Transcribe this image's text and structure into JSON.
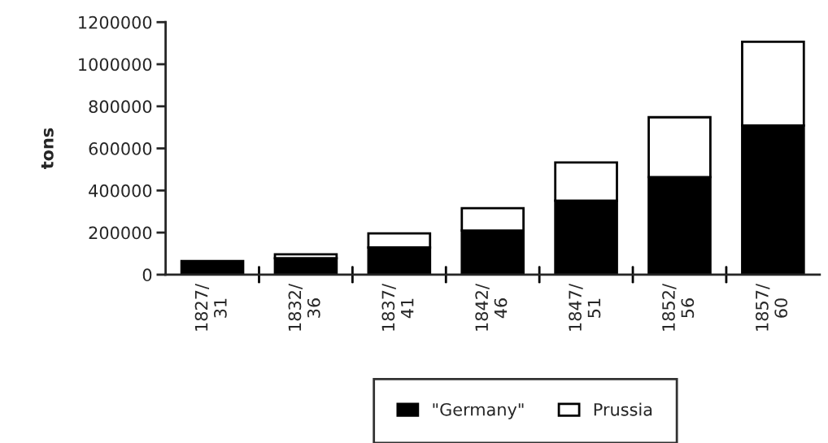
{
  "chart_data": {
    "type": "bar",
    "ylabel": "tons",
    "stacked": true,
    "categories": [
      "1827/\n31",
      "1832/\n36",
      "1837/\n41",
      "1842/\n46",
      "1847/\n51",
      "1852/\n56",
      "1857/\n60"
    ],
    "series": [
      {
        "name": "\"Germany\"",
        "color": "#000000",
        "values": [
          65000,
          78000,
          129000,
          210000,
          352000,
          464000,
          709000
        ]
      },
      {
        "name": "Prussia",
        "color": "#ffffff",
        "values": [
          null,
          19000,
          67000,
          106000,
          181000,
          284000,
          398000
        ]
      }
    ],
    "ylim": [
      0,
      1200000
    ],
    "yticks": [
      0,
      200000,
      400000,
      600000,
      800000,
      1000000,
      1200000
    ],
    "grid": false,
    "legend": "bottom"
  }
}
